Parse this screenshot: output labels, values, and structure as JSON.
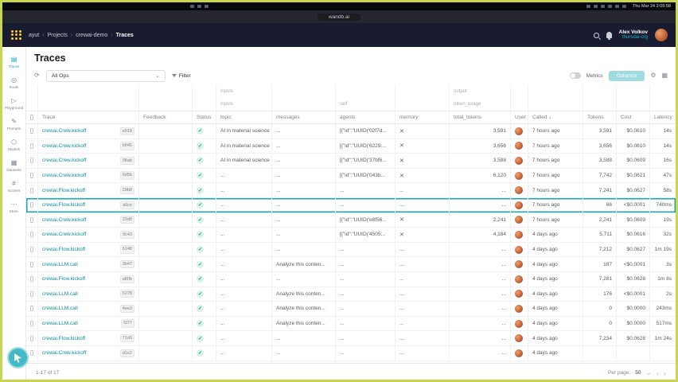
{
  "colors": {
    "accent": "#13a9ba",
    "green": "#0b9a66",
    "link": "#0c8f9f",
    "frame": "#c9d64f",
    "nav_bg": "#191b30"
  },
  "menubar": {
    "clock": "Thu Mar 24 2:09:58"
  },
  "browser": {
    "url": "wandb.ai"
  },
  "nav": {
    "breadcrumb": [
      "ayut",
      "Projects",
      "crewai-demo",
      "Traces"
    ],
    "user_name": "Alex Volkov",
    "user_org": "thursdai-org"
  },
  "sidebar": {
    "items": [
      {
        "label": "Traces",
        "icon": "traces-icon",
        "active": true
      },
      {
        "label": "Evals",
        "icon": "evals-icon",
        "active": false
      },
      {
        "label": "Playground",
        "icon": "playground-icon",
        "active": false
      },
      {
        "label": "Prompts",
        "icon": "prompts-icon",
        "active": false
      },
      {
        "label": "Models",
        "icon": "models-icon",
        "active": false
      },
      {
        "label": "Datasets",
        "icon": "datasets-icon",
        "active": false
      },
      {
        "label": "Scorers",
        "icon": "scorers-icon",
        "active": false
      },
      {
        "label": "More",
        "icon": "more-icon",
        "active": false
      }
    ]
  },
  "page": {
    "title": "Traces"
  },
  "toolbar": {
    "ops": "All Ops",
    "filter": "Filter",
    "metrics": "Metrics",
    "columns_button": "Columns"
  },
  "table": {
    "group_row_1": {
      "inputs": "inputs",
      "output": "output"
    },
    "group_row_2": {
      "inputs": "inputs",
      "self": "self",
      "token_usage": "token_usage"
    },
    "headers": {
      "trace": "Trace",
      "feedback": "Feedback",
      "status": "Status",
      "topic": "topic",
      "messages": "messages",
      "agents": "agents",
      "memory": "memory",
      "total_tokens": "total_tokens",
      "user": "User",
      "called": "Called",
      "tokens": "Tokens",
      "cost": "Cost",
      "latency": "Latency"
    },
    "rows": [
      {
        "name": "crewai.Crew.kickoff",
        "id": "e918",
        "topic": "AI in material science",
        "messages": "",
        "agents": "[{\"id\":\"UUID('02f7d...",
        "memory": "x",
        "total_tokens": "3,591",
        "called": "7 hours ago",
        "tokens": "3,591",
        "cost": "$0.0610",
        "latency": "14s",
        "selected": false
      },
      {
        "name": "crewai.Crew.kickoff",
        "id": "b845",
        "topic": "AI in material science",
        "messages": "",
        "agents": "[{\"id\":\"UUID('6229:...",
        "memory": "x",
        "total_tokens": "3,656",
        "called": "7 hours ago",
        "tokens": "3,656",
        "cost": "$0.0610",
        "latency": "14s",
        "selected": false
      },
      {
        "name": "crewai.Crew.kickoff",
        "id": "98ab",
        "topic": "AI in material science",
        "messages": "",
        "agents": "[{\"id\":\"UUID('37bf6...",
        "memory": "x",
        "total_tokens": "3,588",
        "called": "7 hours ago",
        "tokens": "3,588",
        "cost": "$0.0609",
        "latency": "16s",
        "selected": false
      },
      {
        "name": "crewai.Crew.kickoff",
        "id": "6d5b",
        "topic": "",
        "messages": "",
        "agents": "[{\"id\":\"UUID('043b...",
        "memory": "x",
        "total_tokens": "6,120",
        "called": "7 hours ago",
        "tokens": "7,742",
        "cost": "$0.0621",
        "latency": "47s",
        "selected": false
      },
      {
        "name": "crewai.Flow.kickoff",
        "id": "29b8",
        "topic": "",
        "messages": "",
        "agents": "",
        "memory": "",
        "total_tokens": "",
        "called": "7 hours ago",
        "tokens": "7,241",
        "cost": "$0.0627",
        "latency": "58s",
        "selected": false
      },
      {
        "name": "crewai.Flow.kickoff",
        "id": "a5ce",
        "topic": "",
        "messages": "",
        "agents": "",
        "memory": "",
        "total_tokens": "",
        "called": "7 hours ago",
        "tokens": "66",
        "cost": "<$0.0001",
        "latency": "740ms",
        "selected": true
      },
      {
        "name": "crewai.Crew.kickoff",
        "id": "23d8",
        "topic": "",
        "messages": "",
        "agents": "[{\"id\":\"UUID('e8f56...",
        "memory": "x",
        "total_tokens": "2,241",
        "called": "7 hours ago",
        "tokens": "2,241",
        "cost": "$0.0609",
        "latency": "19s",
        "selected": false
      },
      {
        "name": "crewai.Crew.kickoff",
        "id": "9c43",
        "topic": "",
        "messages": "",
        "agents": "[{\"id\":\"UUID('4505...",
        "memory": "x",
        "total_tokens": "4,184",
        "called": "4 days ago",
        "tokens": "5,711",
        "cost": "$0.0616",
        "latency": "32s",
        "selected": false
      },
      {
        "name": "crewai.Flow.kickoff",
        "id": "6148",
        "topic": "",
        "messages": "",
        "agents": "",
        "memory": "",
        "total_tokens": "",
        "called": "4 days ago",
        "tokens": "7,212",
        "cost": "$0.0627",
        "latency": "1m 19s",
        "selected": false
      },
      {
        "name": "crewai.LLM.call",
        "id": "3b47",
        "topic": "",
        "messages": "Analyze this conten...",
        "agents": "",
        "memory": "",
        "total_tokens": "",
        "called": "4 days ago",
        "tokens": "187",
        "cost": "<$0.0001",
        "latency": "3s",
        "selected": false
      },
      {
        "name": "crewai.Flow.kickoff",
        "id": "a80b",
        "topic": "",
        "messages": "",
        "agents": "",
        "memory": "",
        "total_tokens": "",
        "called": "4 days ago",
        "tokens": "7,281",
        "cost": "$0.0628",
        "latency": "1m 8s",
        "selected": false
      },
      {
        "name": "crewai.LLM.call",
        "id": "5278",
        "topic": "",
        "messages": "Analyze this conten...",
        "agents": "",
        "memory": "",
        "total_tokens": "",
        "called": "4 days ago",
        "tokens": "176",
        "cost": "<$0.0001",
        "latency": "2s",
        "selected": false
      },
      {
        "name": "crewai.LLM.call",
        "id": "4ee3",
        "topic": "",
        "messages": "Analyze this conten...",
        "agents": "",
        "memory": "",
        "total_tokens": "",
        "called": "4 days ago",
        "tokens": "0",
        "cost": "$0.0000",
        "latency": "243ms",
        "selected": false
      },
      {
        "name": "crewai.LLM.call",
        "id": "f377",
        "topic": "",
        "messages": "Analyze this conten...",
        "agents": "",
        "memory": "",
        "total_tokens": "",
        "called": "4 days ago",
        "tokens": "0",
        "cost": "$0.0000",
        "latency": "517ms",
        "selected": false
      },
      {
        "name": "crewai.Flow.kickoff",
        "id": "71d3",
        "topic": "",
        "messages": "",
        "agents": "",
        "memory": "",
        "total_tokens": "",
        "called": "4 days ago",
        "tokens": "7,234",
        "cost": "$0.0628",
        "latency": "1m 24s",
        "selected": false
      },
      {
        "name": "crewai.Crew.kickoff",
        "id": "d1e2",
        "topic": "",
        "messages": "",
        "agents": "",
        "memory": "",
        "total_tokens": "",
        "called": "4 days ago",
        "tokens": "",
        "cost": "",
        "latency": "",
        "selected": false
      }
    ]
  },
  "footer": {
    "range": "1-17 of 17",
    "per_page_label": "Per page:",
    "per_page_value": "50"
  }
}
